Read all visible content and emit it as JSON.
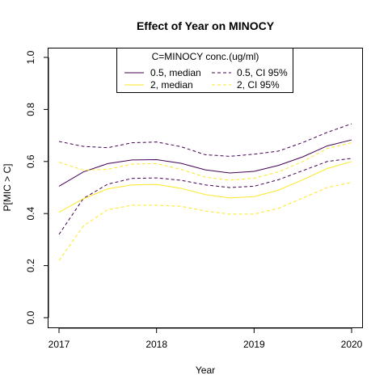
{
  "chart_data": {
    "type": "line",
    "title": "Effect of Year on MINOCY",
    "xlabel": "Year",
    "ylabel": "P[MIC > C]",
    "xlim": [
      2017,
      2020
    ],
    "ylim": [
      0.0,
      1.0
    ],
    "x_ticks": [
      "2017",
      "2018",
      "2019",
      "2020"
    ],
    "y_ticks": [
      "0.0",
      "0.2",
      "0.4",
      "0.6",
      "0.8",
      "1.0"
    ],
    "x": [
      2017,
      2017.25,
      2017.5,
      2017.75,
      2018,
      2018.25,
      2018.5,
      2018.75,
      2019,
      2019.25,
      2019.5,
      2019.75,
      2020
    ],
    "legend": {
      "title": "C=MINOCY conc.(ug/ml)",
      "entries": [
        "0.5, median",
        "0.5, CI 95%",
        "2, median",
        "2, CI 95%"
      ]
    },
    "series": [
      {
        "name": "0.5, median",
        "color": "#440154",
        "dash": "solid",
        "values": [
          0.505,
          0.56,
          0.592,
          0.606,
          0.607,
          0.593,
          0.568,
          0.556,
          0.562,
          0.585,
          0.618,
          0.66,
          0.683
        ]
      },
      {
        "name": "0.5, CI 95%",
        "color": "#440154",
        "dash": "dashed",
        "values": [
          0.677,
          0.658,
          0.653,
          0.672,
          0.675,
          0.657,
          0.626,
          0.62,
          0.628,
          0.64,
          0.673,
          0.712,
          0.745
        ]
      },
      {
        "name": "0.5, CI 95%",
        "color": "#440154",
        "dash": "dashed",
        "values": [
          0.32,
          0.458,
          0.513,
          0.535,
          0.537,
          0.528,
          0.51,
          0.5,
          0.505,
          0.53,
          0.565,
          0.6,
          0.612
        ]
      },
      {
        "name": "2, median",
        "color": "#FDE725",
        "dash": "solid",
        "values": [
          0.405,
          0.457,
          0.495,
          0.51,
          0.512,
          0.497,
          0.473,
          0.46,
          0.465,
          0.49,
          0.53,
          0.573,
          0.6
        ]
      },
      {
        "name": "2, CI 95%",
        "color": "#FDE725",
        "dash": "dashed",
        "values": [
          0.597,
          0.567,
          0.57,
          0.59,
          0.592,
          0.57,
          0.54,
          0.528,
          0.536,
          0.56,
          0.6,
          0.65,
          0.672
        ]
      },
      {
        "name": "2, CI 95%",
        "color": "#FDE725",
        "dash": "dashed",
        "values": [
          0.22,
          0.352,
          0.415,
          0.432,
          0.432,
          0.428,
          0.41,
          0.398,
          0.398,
          0.42,
          0.46,
          0.5,
          0.52
        ]
      }
    ]
  }
}
